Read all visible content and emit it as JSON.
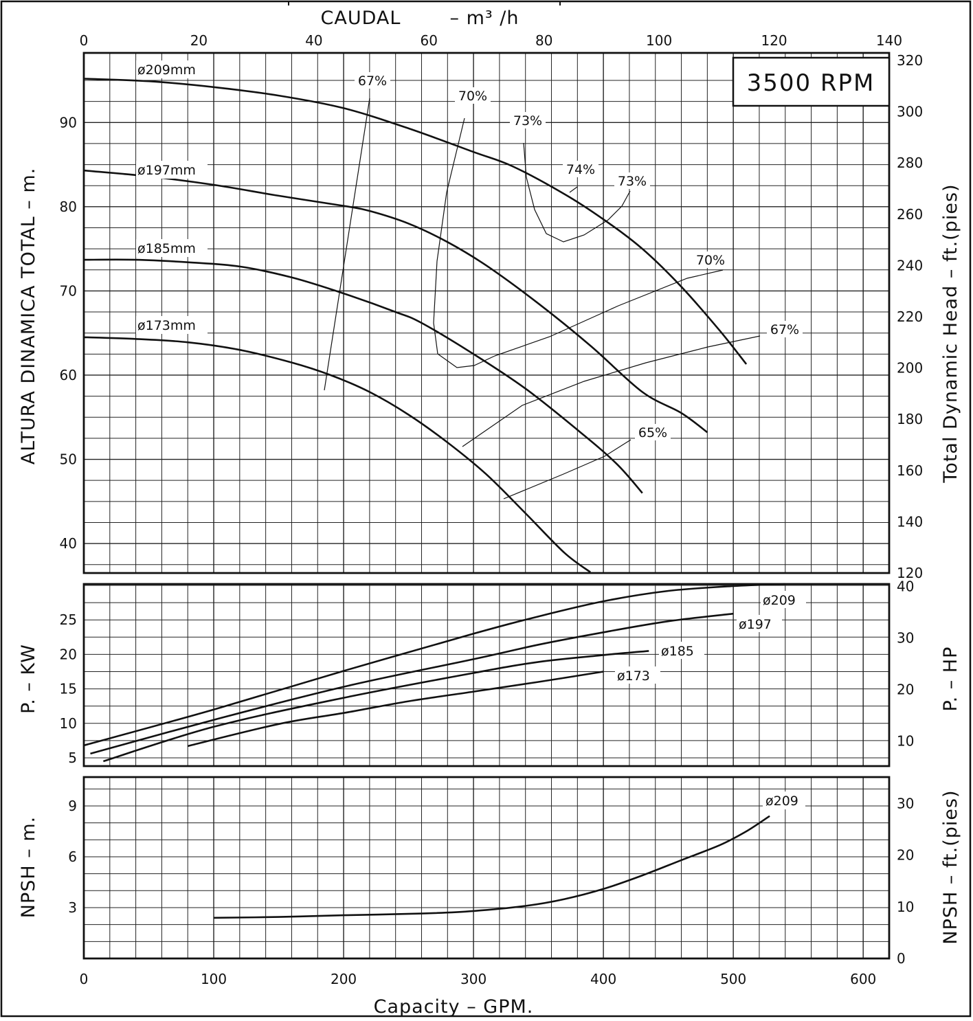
{
  "chart_data": [
    {
      "type": "line",
      "panel": "head",
      "top_title": "CAUDAL",
      "top_title_unit": "– m³ /h",
      "speed_label": "3500 RPM",
      "xlabel_bottom": "Capacity – GPM.",
      "ylabel_left": "ALTURA DINAMICA TOTAL – m.",
      "ylabel_right": "Total Dynamic Head – ft.(pies)",
      "top_ticks": [
        "0",
        "20",
        "40",
        "60",
        "80",
        "100",
        "120",
        "140"
      ],
      "left_ticks": [
        "40",
        "50",
        "60",
        "70",
        "80",
        "90"
      ],
      "right_ticks": [
        "120",
        "140",
        "160",
        "180",
        "200",
        "220",
        "240",
        "260",
        "280",
        "300",
        "320"
      ],
      "xlim_gpm": [
        0,
        620
      ],
      "ylim_m": [
        36.5,
        95.0
      ],
      "grid": true,
      "series": [
        {
          "name": "ø209mm",
          "x": [
            0,
            50,
            100,
            150,
            200,
            250,
            300,
            330,
            370,
            400,
            430,
            460,
            490,
            510
          ],
          "y": [
            95.2,
            94.9,
            94.2,
            93.2,
            91.7,
            89.3,
            86.5,
            84.8,
            81.5,
            78.5,
            75.0,
            70.5,
            65.2,
            61.3
          ]
        },
        {
          "name": "ø197mm",
          "x": [
            0,
            50,
            100,
            150,
            200,
            220,
            250,
            280,
            310,
            350,
            390,
            430,
            460,
            480
          ],
          "y": [
            84.3,
            83.6,
            82.6,
            81.3,
            80.1,
            79.5,
            78.0,
            75.8,
            73.0,
            68.5,
            63.5,
            58.0,
            55.5,
            53.2
          ]
        },
        {
          "name": "ø185mm",
          "x": [
            0,
            40,
            80,
            120,
            160,
            200,
            240,
            260,
            300,
            340,
            380,
            410,
            430
          ],
          "y": [
            73.7,
            73.7,
            73.4,
            72.9,
            71.6,
            69.7,
            67.5,
            66.2,
            62.5,
            58.4,
            53.5,
            49.5,
            46.0
          ]
        },
        {
          "name": "ø173mm",
          "x": [
            0,
            40,
            80,
            120,
            160,
            190,
            220,
            250,
            280,
            310,
            340,
            370,
            390
          ],
          "y": [
            64.5,
            64.3,
            63.9,
            63.0,
            61.5,
            60.0,
            58.0,
            55.3,
            52.0,
            48.2,
            43.6,
            38.9,
            36.6
          ]
        }
      ],
      "efficiency_labels": [
        "67%",
        "70%",
        "73%",
        "74%",
        "73%",
        "70%",
        "67%",
        "65%"
      ]
    },
    {
      "type": "line",
      "panel": "power",
      "ylabel_left": "P. – KW",
      "ylabel_right": "P. – HP",
      "left_ticks": [
        "5",
        "10",
        "15",
        "20",
        "25"
      ],
      "right_ticks": [
        "10",
        "20",
        "30",
        "40"
      ],
      "ylim_kw": [
        3.8,
        30.2
      ],
      "grid": true,
      "series": [
        {
          "name": "ø209",
          "x": [
            0,
            100,
            200,
            300,
            350,
            400,
            450,
            500,
            540
          ],
          "y": [
            6.8,
            12.0,
            17.6,
            23.0,
            25.5,
            27.7,
            29.2,
            29.9,
            30.2
          ]
        },
        {
          "name": "ø197",
          "x": [
            5,
            100,
            200,
            300,
            350,
            400,
            450,
            500
          ],
          "y": [
            5.6,
            10.5,
            15.3,
            19.3,
            21.4,
            23.2,
            24.8,
            25.9
          ]
        },
        {
          "name": "ø185",
          "x": [
            15,
            100,
            200,
            300,
            350,
            400,
            435
          ],
          "y": [
            4.5,
            9.5,
            13.7,
            17.3,
            18.9,
            19.9,
            20.5
          ]
        },
        {
          "name": "ø173",
          "x": [
            80,
            150,
            200,
            250,
            300,
            350,
            400
          ],
          "y": [
            6.7,
            9.9,
            11.5,
            13.2,
            14.6,
            16.0,
            17.5
          ]
        }
      ]
    },
    {
      "type": "line",
      "panel": "npsh",
      "ylabel_left": "NPSH – m.",
      "ylabel_right": "NPSH – ft.(pies)",
      "left_ticks": [
        "3",
        "6",
        "9"
      ],
      "right_ticks": [
        "0",
        "10",
        "20",
        "30"
      ],
      "bottom_ticks": [
        "0",
        "100",
        "200",
        "300",
        "400",
        "500",
        "600"
      ],
      "ylim_m": [
        0,
        10.7
      ],
      "grid": true,
      "series": [
        {
          "name": "ø209",
          "x": [
            100,
            150,
            200,
            260,
            300,
            340,
            370,
            400,
            430,
            460,
            490,
            510,
            528
          ],
          "y": [
            2.4,
            2.45,
            2.55,
            2.65,
            2.8,
            3.1,
            3.5,
            4.1,
            4.9,
            5.8,
            6.7,
            7.5,
            8.4
          ]
        }
      ]
    }
  ]
}
